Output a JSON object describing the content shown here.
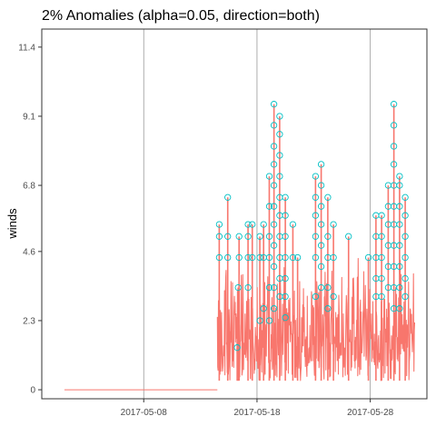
{
  "chart_data": {
    "type": "line",
    "title": "2% Anomalies (alpha=0.05, direction=both)",
    "xlabel": "",
    "ylabel": "winds",
    "x_range": [
      "2017-04-29",
      "2017-06-02"
    ],
    "ylim": [
      -0.3,
      12.0
    ],
    "y_ticks": [
      0,
      2.3,
      4.6,
      6.8,
      9.1,
      11.4
    ],
    "y_tick_labels": [
      "0",
      "2.3",
      "4.6",
      "6.8",
      "9.1",
      "11.4"
    ],
    "x_ticks": [
      "2017-05-08",
      "2017-05-18",
      "2017-05-28"
    ],
    "grid": "vertical lines at x ticks",
    "series": [
      {
        "role": "values",
        "color": "#f8766d",
        "flat_segment": {
          "from": "2017-05-01",
          "to": "2017-05-14T12:00",
          "value": 0
        },
        "active_period": {
          "from": "2017-05-14T12:00",
          "to": "2017-05-31T22:00",
          "typical_range": [
            0.3,
            4.6
          ]
        }
      },
      {
        "role": "anomalies",
        "color": "#00bfc4",
        "marker": "open-circle",
        "points": [
          {
            "x": "2017-05-14T16:00",
            "y": 4.4
          },
          {
            "x": "2017-05-14T16:00",
            "y": 5.1
          },
          {
            "x": "2017-05-14T16:00",
            "y": 5.5
          },
          {
            "x": "2017-05-15T10:00",
            "y": 4.4
          },
          {
            "x": "2017-05-15T10:00",
            "y": 5.1
          },
          {
            "x": "2017-05-15T10:00",
            "y": 6.4
          },
          {
            "x": "2017-05-16T06:00",
            "y": 1.4
          },
          {
            "x": "2017-05-16T08:00",
            "y": 3.4
          },
          {
            "x": "2017-05-16T10:00",
            "y": 4.4
          },
          {
            "x": "2017-05-16T10:00",
            "y": 5.1
          },
          {
            "x": "2017-05-17T05:00",
            "y": 3.4
          },
          {
            "x": "2017-05-17T05:00",
            "y": 4.4
          },
          {
            "x": "2017-05-17T05:00",
            "y": 5.1
          },
          {
            "x": "2017-05-17T05:00",
            "y": 5.5
          },
          {
            "x": "2017-05-17T14:00",
            "y": 4.4
          },
          {
            "x": "2017-05-17T14:00",
            "y": 5.5
          },
          {
            "x": "2017-05-18T06:00",
            "y": 2.3
          },
          {
            "x": "2017-05-18T06:00",
            "y": 4.4
          },
          {
            "x": "2017-05-18T06:00",
            "y": 5.1
          },
          {
            "x": "2017-05-18T14:00",
            "y": 2.7
          },
          {
            "x": "2017-05-18T14:00",
            "y": 4.4
          },
          {
            "x": "2017-05-18T14:00",
            "y": 5.5
          },
          {
            "x": "2017-05-19T02:00",
            "y": 2.3
          },
          {
            "x": "2017-05-19T02:00",
            "y": 3.4
          },
          {
            "x": "2017-05-19T02:00",
            "y": 4.4
          },
          {
            "x": "2017-05-19T02:00",
            "y": 5.1
          },
          {
            "x": "2017-05-19T02:00",
            "y": 6.1
          },
          {
            "x": "2017-05-19T02:00",
            "y": 7.1
          },
          {
            "x": "2017-05-19T12:00",
            "y": 2.7
          },
          {
            "x": "2017-05-19T12:00",
            "y": 3.4
          },
          {
            "x": "2017-05-19T12:00",
            "y": 4.1
          },
          {
            "x": "2017-05-19T12:00",
            "y": 4.8
          },
          {
            "x": "2017-05-19T12:00",
            "y": 5.5
          },
          {
            "x": "2017-05-19T12:00",
            "y": 6.1
          },
          {
            "x": "2017-05-19T12:00",
            "y": 6.8
          },
          {
            "x": "2017-05-19T12:00",
            "y": 7.5
          },
          {
            "x": "2017-05-19T12:00",
            "y": 8.1
          },
          {
            "x": "2017-05-19T12:00",
            "y": 8.8
          },
          {
            "x": "2017-05-19T12:00",
            "y": 9.5
          },
          {
            "x": "2017-05-20T00:00",
            "y": 3.1
          },
          {
            "x": "2017-05-20T00:00",
            "y": 3.7
          },
          {
            "x": "2017-05-20T00:00",
            "y": 4.4
          },
          {
            "x": "2017-05-20T00:00",
            "y": 5.1
          },
          {
            "x": "2017-05-20T00:00",
            "y": 5.8
          },
          {
            "x": "2017-05-20T00:00",
            "y": 6.4
          },
          {
            "x": "2017-05-20T00:00",
            "y": 7.1
          },
          {
            "x": "2017-05-20T00:00",
            "y": 7.8
          },
          {
            "x": "2017-05-20T00:00",
            "y": 8.5
          },
          {
            "x": "2017-05-20T00:00",
            "y": 9.1
          },
          {
            "x": "2017-05-20T12:00",
            "y": 2.4
          },
          {
            "x": "2017-05-20T12:00",
            "y": 3.1
          },
          {
            "x": "2017-05-20T12:00",
            "y": 3.7
          },
          {
            "x": "2017-05-20T12:00",
            "y": 4.4
          },
          {
            "x": "2017-05-20T12:00",
            "y": 5.1
          },
          {
            "x": "2017-05-20T12:00",
            "y": 5.8
          },
          {
            "x": "2017-05-20T12:00",
            "y": 6.4
          },
          {
            "x": "2017-05-21T04:00",
            "y": 4.4
          },
          {
            "x": "2017-05-21T04:00",
            "y": 5.5
          },
          {
            "x": "2017-05-21T14:00",
            "y": 4.4
          },
          {
            "x": "2017-05-23T04:00",
            "y": 3.1
          },
          {
            "x": "2017-05-23T04:00",
            "y": 4.4
          },
          {
            "x": "2017-05-23T04:00",
            "y": 5.1
          },
          {
            "x": "2017-05-23T04:00",
            "y": 5.8
          },
          {
            "x": "2017-05-23T04:00",
            "y": 6.4
          },
          {
            "x": "2017-05-23T04:00",
            "y": 7.1
          },
          {
            "x": "2017-05-23T16:00",
            "y": 3.4
          },
          {
            "x": "2017-05-23T16:00",
            "y": 4.1
          },
          {
            "x": "2017-05-23T16:00",
            "y": 4.8
          },
          {
            "x": "2017-05-23T16:00",
            "y": 5.5
          },
          {
            "x": "2017-05-23T16:00",
            "y": 6.1
          },
          {
            "x": "2017-05-23T16:00",
            "y": 6.8
          },
          {
            "x": "2017-05-23T16:00",
            "y": 7.5
          },
          {
            "x": "2017-05-24T06:00",
            "y": 2.7
          },
          {
            "x": "2017-05-24T06:00",
            "y": 3.4
          },
          {
            "x": "2017-05-24T06:00",
            "y": 4.4
          },
          {
            "x": "2017-05-24T06:00",
            "y": 5.1
          },
          {
            "x": "2017-05-24T06:00",
            "y": 6.4
          },
          {
            "x": "2017-05-24T18:00",
            "y": 3.1
          },
          {
            "x": "2017-05-24T18:00",
            "y": 4.4
          },
          {
            "x": "2017-05-24T18:00",
            "y": 5.5
          },
          {
            "x": "2017-05-26T02:00",
            "y": 5.1
          },
          {
            "x": "2017-05-27T20:00",
            "y": 4.4
          },
          {
            "x": "2017-05-28T12:00",
            "y": 3.1
          },
          {
            "x": "2017-05-28T12:00",
            "y": 3.7
          },
          {
            "x": "2017-05-28T12:00",
            "y": 4.4
          },
          {
            "x": "2017-05-28T12:00",
            "y": 5.1
          },
          {
            "x": "2017-05-28T12:00",
            "y": 5.8
          },
          {
            "x": "2017-05-29T00:00",
            "y": 3.1
          },
          {
            "x": "2017-05-29T00:00",
            "y": 3.7
          },
          {
            "x": "2017-05-29T00:00",
            "y": 4.4
          },
          {
            "x": "2017-05-29T00:00",
            "y": 5.1
          },
          {
            "x": "2017-05-29T00:00",
            "y": 5.8
          },
          {
            "x": "2017-05-29T14:00",
            "y": 3.4
          },
          {
            "x": "2017-05-29T14:00",
            "y": 4.1
          },
          {
            "x": "2017-05-29T14:00",
            "y": 4.8
          },
          {
            "x": "2017-05-29T14:00",
            "y": 5.5
          },
          {
            "x": "2017-05-29T14:00",
            "y": 6.1
          },
          {
            "x": "2017-05-29T14:00",
            "y": 6.8
          },
          {
            "x": "2017-05-30T02:00",
            "y": 2.7
          },
          {
            "x": "2017-05-30T02:00",
            "y": 3.4
          },
          {
            "x": "2017-05-30T02:00",
            "y": 4.1
          },
          {
            "x": "2017-05-30T02:00",
            "y": 4.8
          },
          {
            "x": "2017-05-30T02:00",
            "y": 5.5
          },
          {
            "x": "2017-05-30T02:00",
            "y": 6.1
          },
          {
            "x": "2017-05-30T02:00",
            "y": 6.8
          },
          {
            "x": "2017-05-30T02:00",
            "y": 7.5
          },
          {
            "x": "2017-05-30T02:00",
            "y": 8.1
          },
          {
            "x": "2017-05-30T02:00",
            "y": 8.8
          },
          {
            "x": "2017-05-30T02:00",
            "y": 9.5
          },
          {
            "x": "2017-05-30T14:00",
            "y": 2.7
          },
          {
            "x": "2017-05-30T14:00",
            "y": 3.4
          },
          {
            "x": "2017-05-30T14:00",
            "y": 4.1
          },
          {
            "x": "2017-05-30T14:00",
            "y": 4.8
          },
          {
            "x": "2017-05-30T14:00",
            "y": 5.5
          },
          {
            "x": "2017-05-30T14:00",
            "y": 6.1
          },
          {
            "x": "2017-05-30T14:00",
            "y": 6.8
          },
          {
            "x": "2017-05-30T14:00",
            "y": 7.1
          },
          {
            "x": "2017-05-31T02:00",
            "y": 3.1
          },
          {
            "x": "2017-05-31T02:00",
            "y": 3.7
          },
          {
            "x": "2017-05-31T02:00",
            "y": 4.4
          },
          {
            "x": "2017-05-31T02:00",
            "y": 5.1
          },
          {
            "x": "2017-05-31T02:00",
            "y": 5.8
          },
          {
            "x": "2017-05-31T02:00",
            "y": 6.4
          }
        ]
      }
    ]
  }
}
